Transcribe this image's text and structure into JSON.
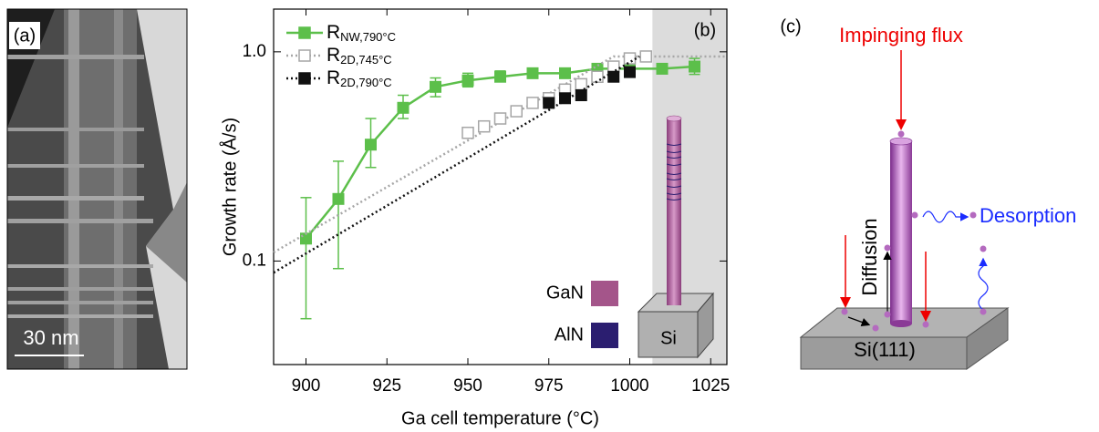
{
  "panel_a": {
    "label": "(a)",
    "scale_bar": "30 nm"
  },
  "chart_data": {
    "type": "line",
    "panel_label": "(b)",
    "x_label": "Ga cell temperature (°C)",
    "y_label": "Growth rate (Å/s)",
    "xlim": [
      890,
      1030
    ],
    "xticks": [
      900,
      925,
      950,
      975,
      1000,
      1025
    ],
    "ylim": [
      0.032,
      1.6
    ],
    "yticks": [
      {
        "value": 1,
        "label": "1.0"
      },
      0.1
    ],
    "log_y": true,
    "shaded_xrange": [
      1007,
      1030
    ],
    "legend": "upper left",
    "series": [
      {
        "name": "R",
        "name_sub": "NW,790°C",
        "color": "#5cbf4a",
        "marker": "filled",
        "line": "solid",
        "x": [
          900,
          910,
          920,
          930,
          940,
          950,
          960,
          970,
          980,
          990,
          1000,
          1010,
          1020
        ],
        "values": [
          0.128,
          0.198,
          0.36,
          0.54,
          0.68,
          0.73,
          0.76,
          0.79,
          0.79,
          0.83,
          0.83,
          0.83,
          0.85
        ],
        "lower": [
          0.053,
          0.092,
          0.28,
          0.48,
          0.61,
          0.68,
          0.72,
          0.76,
          0.76,
          0.8,
          0.8,
          0.8,
          0.78
        ],
        "upper": [
          0.201,
          0.3,
          0.48,
          0.62,
          0.75,
          0.79,
          0.81,
          0.82,
          0.82,
          0.86,
          0.86,
          0.86,
          0.93
        ]
      },
      {
        "name": "R",
        "name_sub": "2D,745°C",
        "color": "#a6a6a6",
        "marker": "open",
        "line": "dotted",
        "x": [
          950,
          955,
          960,
          965,
          970,
          975,
          980,
          985,
          990,
          995,
          1000,
          1005
        ],
        "values": [
          0.41,
          0.44,
          0.48,
          0.52,
          0.57,
          0.6,
          0.66,
          0.7,
          0.76,
          0.85,
          0.93,
          0.95
        ],
        "fit": {
          "x": [
            890,
            995,
            1030
          ],
          "values": [
            0.11,
            0.95,
            0.95
          ]
        }
      },
      {
        "name": "R",
        "name_sub": "2D,790°C",
        "color": "#111111",
        "marker": "filled",
        "line": "dotted",
        "x": [
          975,
          980,
          985,
          995,
          1000
        ],
        "values": [
          0.57,
          0.6,
          0.62,
          0.76,
          0.8
        ],
        "fit": {
          "x": [
            890,
            1003
          ],
          "values": [
            0.088,
            0.95
          ]
        }
      }
    ],
    "inset_legend": [
      {
        "label": "GaN",
        "color": "#a4558a"
      },
      {
        "label": "AlN",
        "color": "#2b1e70"
      }
    ],
    "inset_label": "Si"
  },
  "diagram_c": {
    "label": "(c)",
    "impinging": "Impinging flux",
    "desorption": "Desorption",
    "diffusion": "Diffusion",
    "substrate": "Si(111)"
  }
}
